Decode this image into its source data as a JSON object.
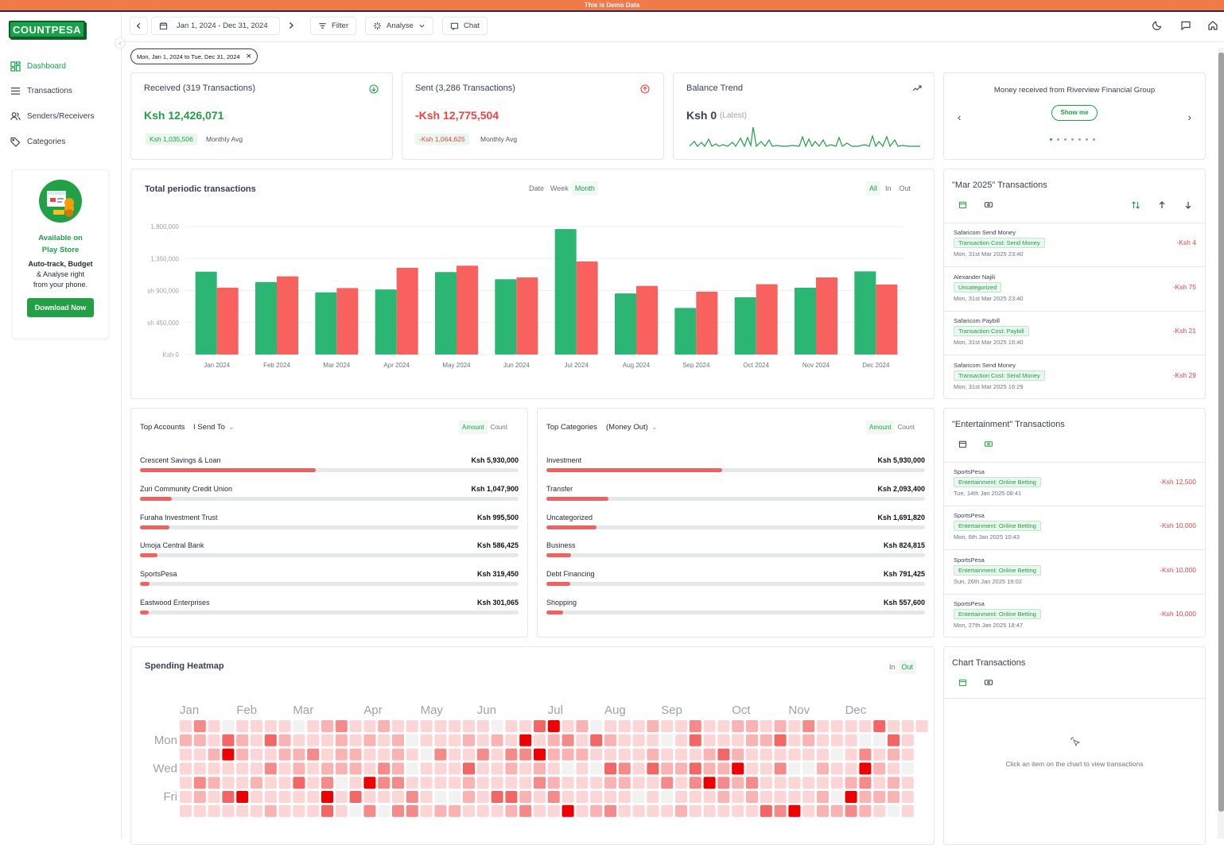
{
  "banner": "This is Demo Data",
  "brand": {
    "logo_text": "COUNTPESA"
  },
  "sidebar": {
    "items": [
      {
        "label": "Dashboard",
        "icon": "dashboard-icon",
        "active": true
      },
      {
        "label": "Transactions",
        "icon": "list-icon"
      },
      {
        "label": "Senders/Receivers",
        "icon": "users-icon"
      },
      {
        "label": "Categories",
        "icon": "tag-icon"
      }
    ],
    "promo": {
      "title_line1": "Available on",
      "title_line2": "Play Store",
      "text_line1": "Auto-track, Budget",
      "text_line2": "& Analyse right",
      "text_line3": "from your phone.",
      "button": "Download Now"
    }
  },
  "toolbar": {
    "date_range": "Jan 1, 2024 - Dec 31, 2024",
    "filter": "Filter",
    "analyse": "Analyse",
    "chat": "Chat"
  },
  "filter_chip": "Mon, Jan 1, 2024 to Tue, Dec 31, 2024",
  "summary": {
    "received": {
      "title": "Received (319 Transactions)",
      "value": "Ksh 12,426,071",
      "avg": "Ksh 1,035,506",
      "avg_label": "Monthly Avg",
      "color": "#22a046"
    },
    "sent": {
      "title": "Sent (3,286 Transactions)",
      "value": "-Ksh 12,775,504",
      "avg": "-Ksh 1,064,625",
      "avg_label": "Monthly Avg",
      "color": "#ef4444"
    },
    "balance": {
      "title": "Balance Trend",
      "value": "Ksh 0",
      "note": "(Latest)"
    },
    "carousel": {
      "title": "Money received from Riverview Financial Group",
      "button": "Show me",
      "dots": 7,
      "active_dot": 0
    }
  },
  "periodic": {
    "title": "Total periodic transactions",
    "periods": [
      "Date",
      "Week",
      "Month"
    ],
    "active_period": "Month",
    "filters": [
      "All",
      "In",
      "Out"
    ],
    "active_filter": "All"
  },
  "chart_data": {
    "type": "bar",
    "categories": [
      "Jan 2024",
      "Feb 2024",
      "Mar 2024",
      "Apr 2024",
      "May 2024",
      "Jun 2024",
      "Jul 2024",
      "Aug 2024",
      "Sep 2024",
      "Oct 2024",
      "Nov 2024",
      "Dec 2024"
    ],
    "series": [
      {
        "values": [
          1165000,
          1020000,
          875000,
          915000,
          1160000,
          1060000,
          1765000,
          860000,
          655000,
          805000,
          940000,
          1170000
        ],
        "color": "#2bb673"
      },
      {
        "values": [
          940000,
          1100000,
          935000,
          1220000,
          1250000,
          1085000,
          1310000,
          965000,
          885000,
          990000,
          1085000,
          985000
        ],
        "color": "#f8615e"
      }
    ],
    "yticks": [
      "Ksh 0",
      "sh 450,000",
      "sh 900,000",
      "1,350,000",
      "1,800,000"
    ],
    "ylim": [
      0,
      1800000
    ]
  },
  "mar_tx": {
    "title": "\"Mar 2025\" Transactions",
    "items": [
      {
        "name": "Safaricom Send Money",
        "tag": "Transaction Cost: Send Money",
        "date": "Mon, 31st Mar 2025 23:40",
        "amount": "-Ksh 4"
      },
      {
        "name": "Alexander Najili",
        "tag": "Uncategorized",
        "date": "Mon, 31st Mar 2025 23:40",
        "amount": "-Ksh 75"
      },
      {
        "name": "Safaricom Paybill",
        "tag": "Transaction Cost: Paybill",
        "date": "Mon, 31st Mar 2025 16:40",
        "amount": "-Ksh 21"
      },
      {
        "name": "Safaricom Send Money",
        "tag": "Transaction Cost: Send Money",
        "date": "Mon, 31st Mar 2025 16:29",
        "amount": "-Ksh 29"
      }
    ]
  },
  "top_accounts": {
    "title": "Top Accounts",
    "mode": "I Send To",
    "toggle": [
      "Amount",
      "Count"
    ],
    "rows": [
      {
        "label": "Crescent Savings & Loan",
        "value": "Ksh 5,930,000",
        "pct": 0.465
      },
      {
        "label": "Zuri Community Credit Union",
        "value": "Ksh 1,047,900",
        "pct": 0.083
      },
      {
        "label": "Furaha Investment Trust",
        "value": "Ksh 995,500",
        "pct": 0.078
      },
      {
        "label": "Umoja Central Bank",
        "value": "Ksh 586,425",
        "pct": 0.046
      },
      {
        "label": "SportsPesa",
        "value": "Ksh 319,450",
        "pct": 0.025
      },
      {
        "label": "Eastwood Enterprises",
        "value": "Ksh 301,065",
        "pct": 0.024
      }
    ]
  },
  "top_categories": {
    "title": "Top Categories",
    "mode": "(Money Out)",
    "toggle": [
      "Amount",
      "Count"
    ],
    "rows": [
      {
        "label": "Investment",
        "value": "Ksh 5,930,000",
        "pct": 0.465
      },
      {
        "label": "Transfer",
        "value": "Ksh 2,093,400",
        "pct": 0.164
      },
      {
        "label": "Uncategorized",
        "value": "Ksh 1,691,820",
        "pct": 0.133
      },
      {
        "label": "Business",
        "value": "Ksh 824,815",
        "pct": 0.065
      },
      {
        "label": "Debt Financing",
        "value": "Ksh 791,425",
        "pct": 0.062
      },
      {
        "label": "Shopping",
        "value": "Ksh 557,600",
        "pct": 0.044
      }
    ]
  },
  "ent_tx": {
    "title": "\"Entertainment\" Transactions",
    "items": [
      {
        "name": "SportsPesa",
        "tag": "Entertainment: Online Betting",
        "date": "Tue, 14th Jan 2025 08:41",
        "amount": "-Ksh 12,500"
      },
      {
        "name": "SportsPesa",
        "tag": "Entertainment: Online Betting",
        "date": "Mon, 6th Jan 2025 10:43",
        "amount": "-Ksh 10,000"
      },
      {
        "name": "SportsPesa",
        "tag": "Entertainment: Online Betting",
        "date": "Sun, 26th Jan 2025 19:02",
        "amount": "-Ksh 10,000"
      },
      {
        "name": "SportsPesa",
        "tag": "Entertainment: Online Betting",
        "date": "Mon, 27th Jan 2025 18:47",
        "amount": "-Ksh 10,000"
      }
    ]
  },
  "heatmap": {
    "title": "Spending Heatmap",
    "filters": [
      "In",
      "Out"
    ],
    "active_filter": "Out",
    "months": [
      "Jan",
      "Feb",
      "Mar",
      "Apr",
      "May",
      "Jun",
      "Jul",
      "Aug",
      "Sep",
      "Oct",
      "Nov",
      "Dec"
    ],
    "days": [
      "Mon",
      "Wed",
      "Fri"
    ]
  },
  "chart_tx": {
    "title": "Chart Transactions",
    "empty": "Click an item on the chart to view transactions"
  }
}
